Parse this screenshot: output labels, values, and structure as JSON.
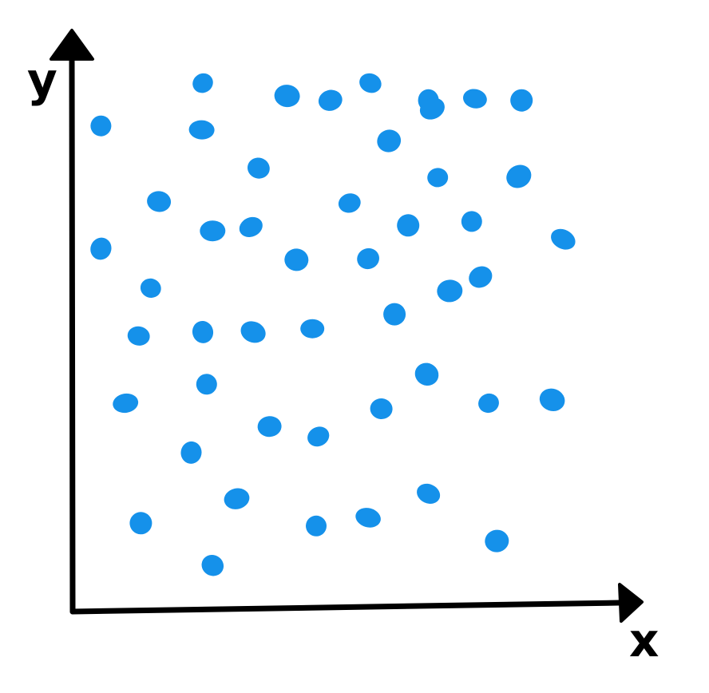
{
  "chart_data": {
    "type": "scatter",
    "xlabel": "x",
    "ylabel": "y",
    "xlim": [
      0,
      100
    ],
    "ylim": [
      0,
      100
    ],
    "grid": false,
    "legend": "none",
    "point_color": "#1591ea",
    "axis_color": "#000000",
    "series": [
      {
        "points": [
          [
            23.9,
            95.1
          ],
          [
            39.3,
            92.8
          ],
          [
            47.2,
            92.0
          ],
          [
            54.5,
            95.1
          ],
          [
            65.1,
            92.0
          ],
          [
            65.8,
            90.5
          ],
          [
            73.6,
            92.3
          ],
          [
            82.1,
            92.0
          ],
          [
            5.3,
            87.4
          ],
          [
            23.7,
            86.7
          ],
          [
            57.9,
            84.7
          ],
          [
            34.1,
            79.8
          ],
          [
            66.8,
            78.1
          ],
          [
            81.6,
            78.3
          ],
          [
            15.9,
            73.8
          ],
          [
            50.7,
            73.5
          ],
          [
            5.3,
            65.3
          ],
          [
            25.7,
            68.5
          ],
          [
            32.7,
            69.2
          ],
          [
            61.4,
            69.5
          ],
          [
            73.0,
            70.2
          ],
          [
            89.7,
            67.0
          ],
          [
            41.0,
            63.3
          ],
          [
            54.1,
            63.5
          ],
          [
            14.4,
            58.2
          ],
          [
            69.0,
            57.7
          ],
          [
            74.6,
            60.2
          ],
          [
            12.2,
            49.6
          ],
          [
            23.9,
            50.3
          ],
          [
            33.1,
            50.3
          ],
          [
            43.9,
            50.9
          ],
          [
            58.9,
            53.5
          ],
          [
            24.6,
            40.9
          ],
          [
            9.8,
            37.5
          ],
          [
            64.8,
            42.7
          ],
          [
            56.5,
            36.5
          ],
          [
            76.1,
            37.5
          ],
          [
            87.7,
            38.1
          ],
          [
            36.1,
            33.3
          ],
          [
            45.0,
            31.5
          ],
          [
            21.8,
            28.6
          ],
          [
            30.1,
            20.3
          ],
          [
            65.1,
            21.2
          ],
          [
            12.6,
            15.9
          ],
          [
            44.6,
            15.4
          ],
          [
            54.1,
            16.9
          ],
          [
            77.6,
            12.7
          ],
          [
            25.7,
            8.3
          ]
        ]
      }
    ]
  }
}
